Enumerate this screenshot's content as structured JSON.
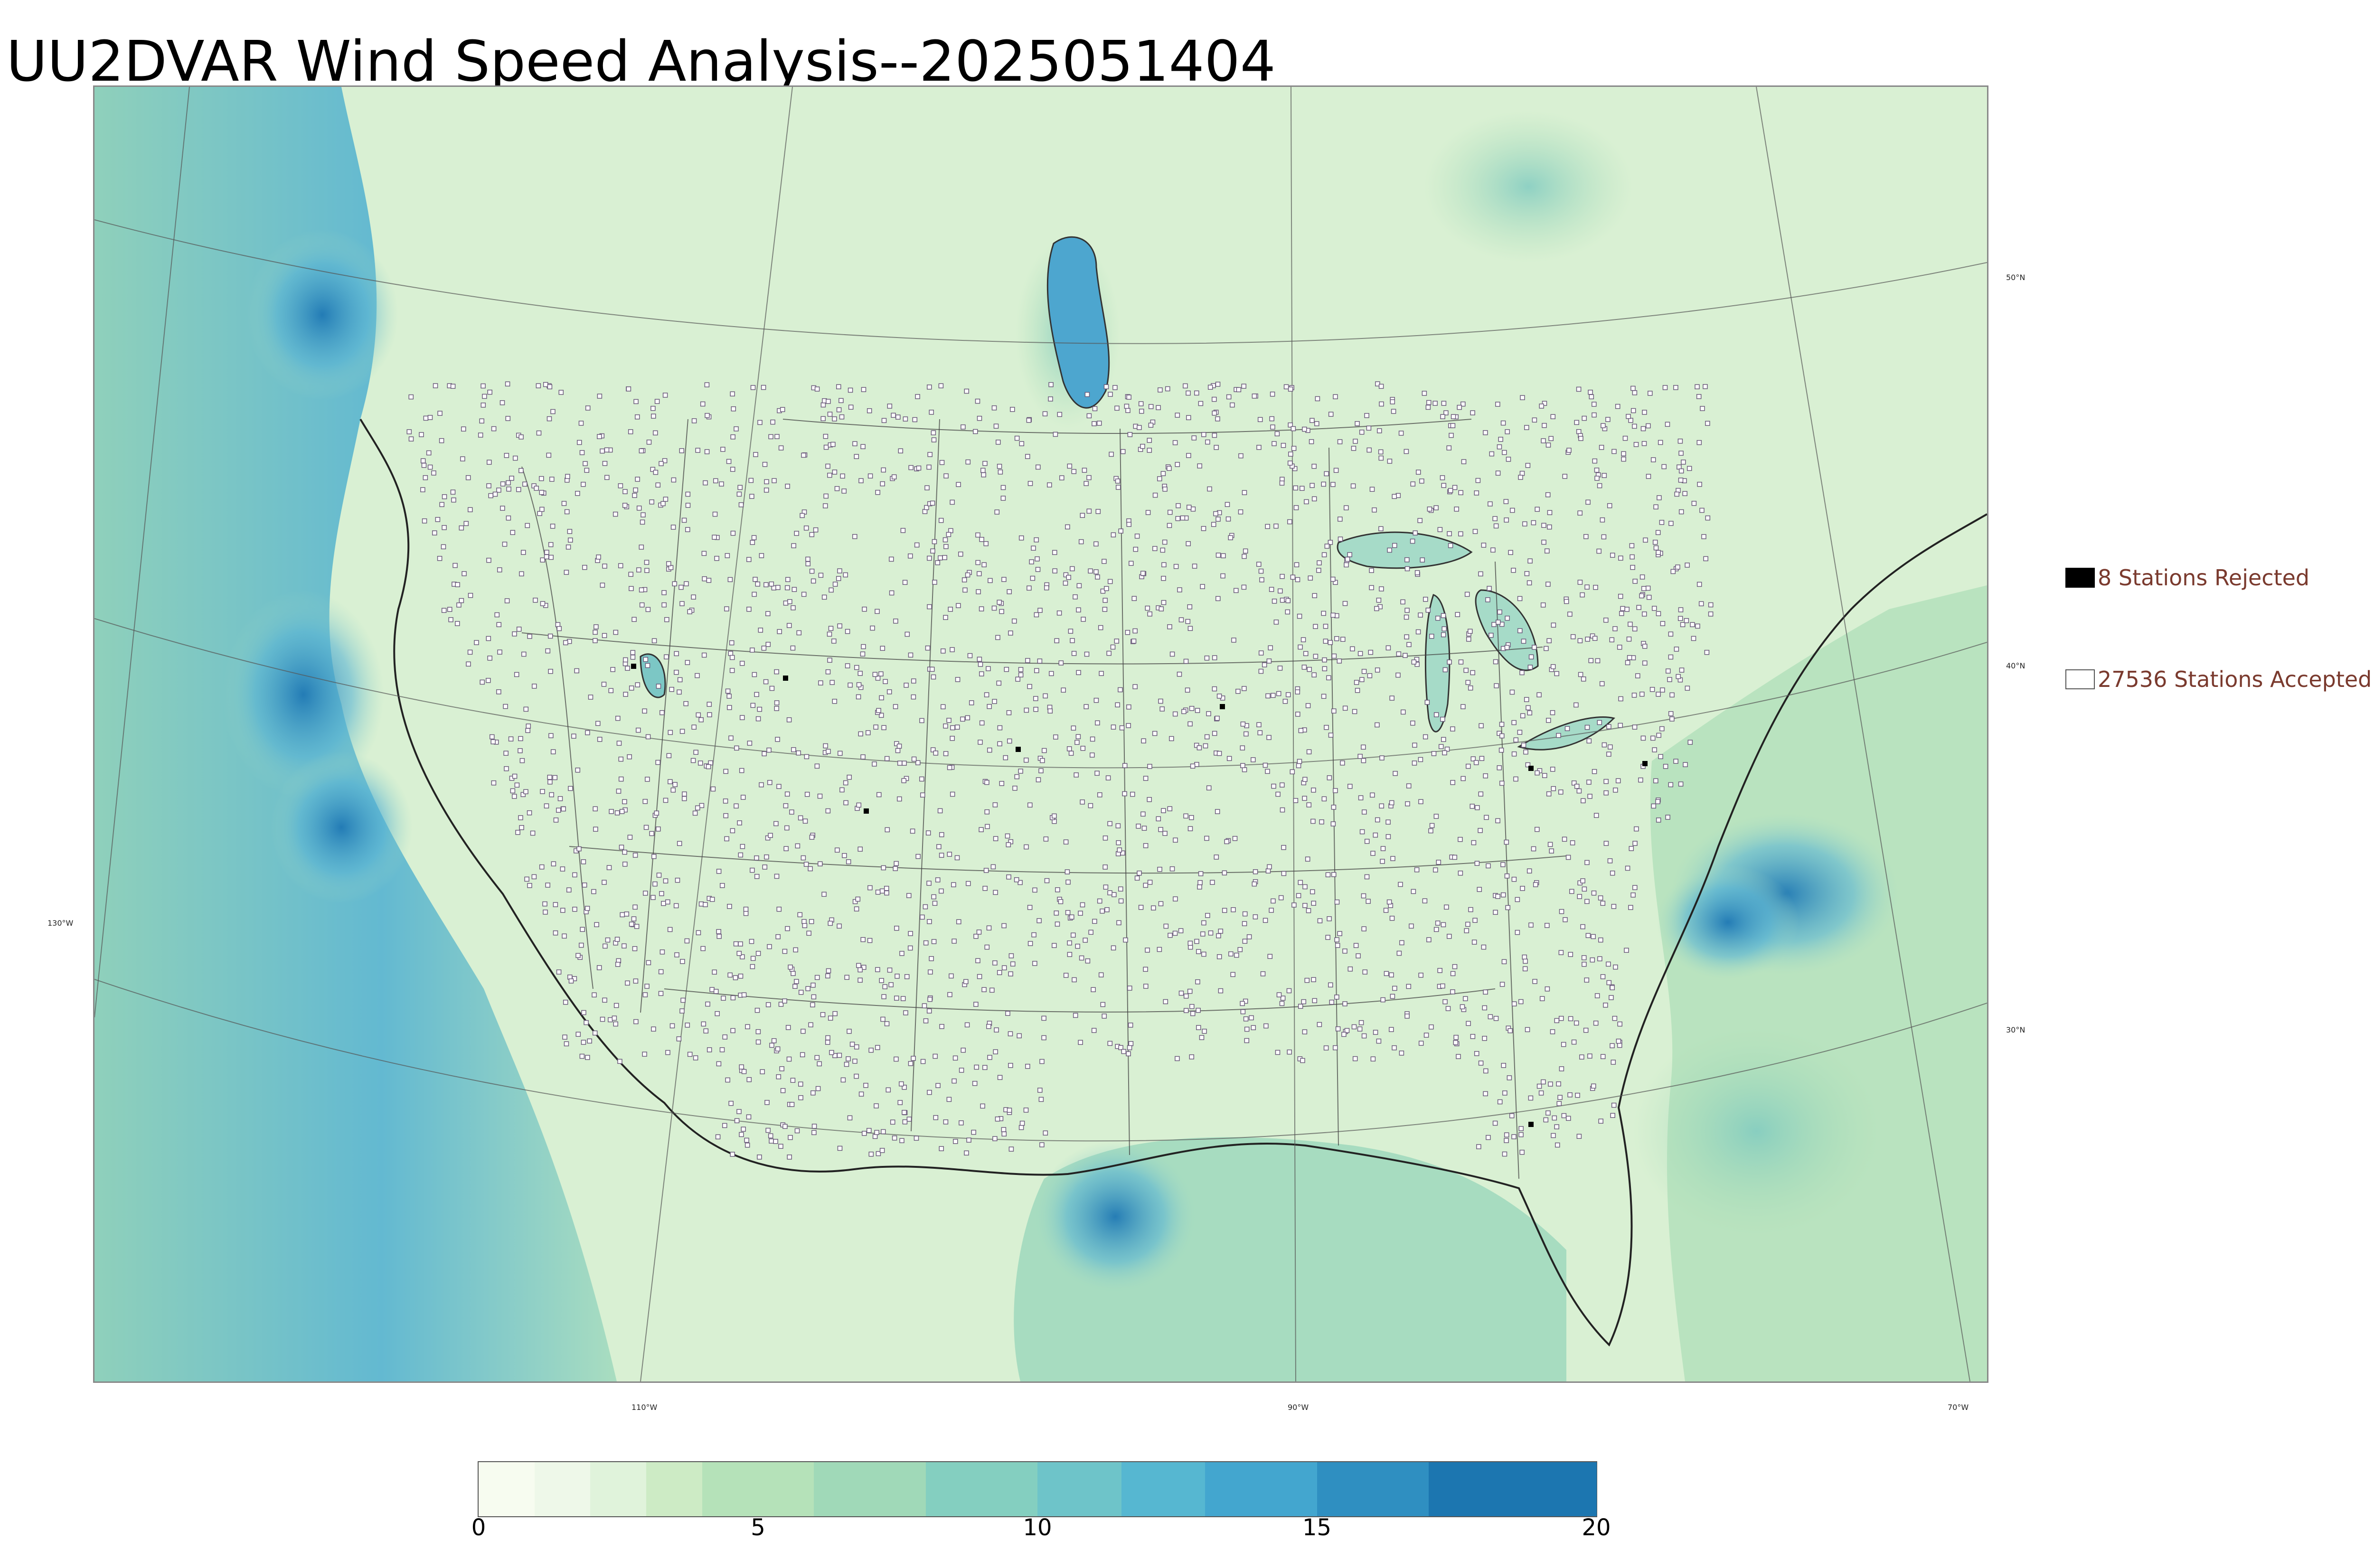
{
  "title": "UU2DVAR Wind Speed Analysis--2025051404",
  "map": {
    "lon_labels": [
      "130°W",
      "110°W",
      "90°W",
      "70°W"
    ],
    "lat_labels": [
      "50°N",
      "40°N",
      "30°N"
    ],
    "land_color": "#e4f3df",
    "ocean_color": "#9fd8c4",
    "strong_wind_color": "#2c87bd",
    "border_color": "#333333",
    "station_marker_color": "#6a5a7a"
  },
  "legend": {
    "rejected_label": "8 Stations Rejected",
    "rejected_color": "#000000",
    "accepted_label": "27536 Stations Accepted",
    "accepted_color": "#ffffff",
    "text_color": "#7a3a2e"
  },
  "colorbar": {
    "min": 0,
    "max": 20,
    "tick_labels": [
      "0",
      "5",
      "10",
      "15",
      "20"
    ],
    "tick_values": [
      0,
      5,
      10,
      15,
      20
    ],
    "colors": [
      "#f7fcf0",
      "#eef8e9",
      "#e0f3db",
      "#cdebc5",
      "#b5e2b9",
      "#a0d9b8",
      "#84cfc0",
      "#6ec4c9",
      "#56b7d1",
      "#43a6cf",
      "#2f8fc1",
      "#1c76b0",
      "#155e93"
    ],
    "boundaries": [
      0,
      1,
      2,
      3,
      4,
      6,
      8,
      10,
      11.5,
      13,
      15,
      17,
      20
    ]
  }
}
